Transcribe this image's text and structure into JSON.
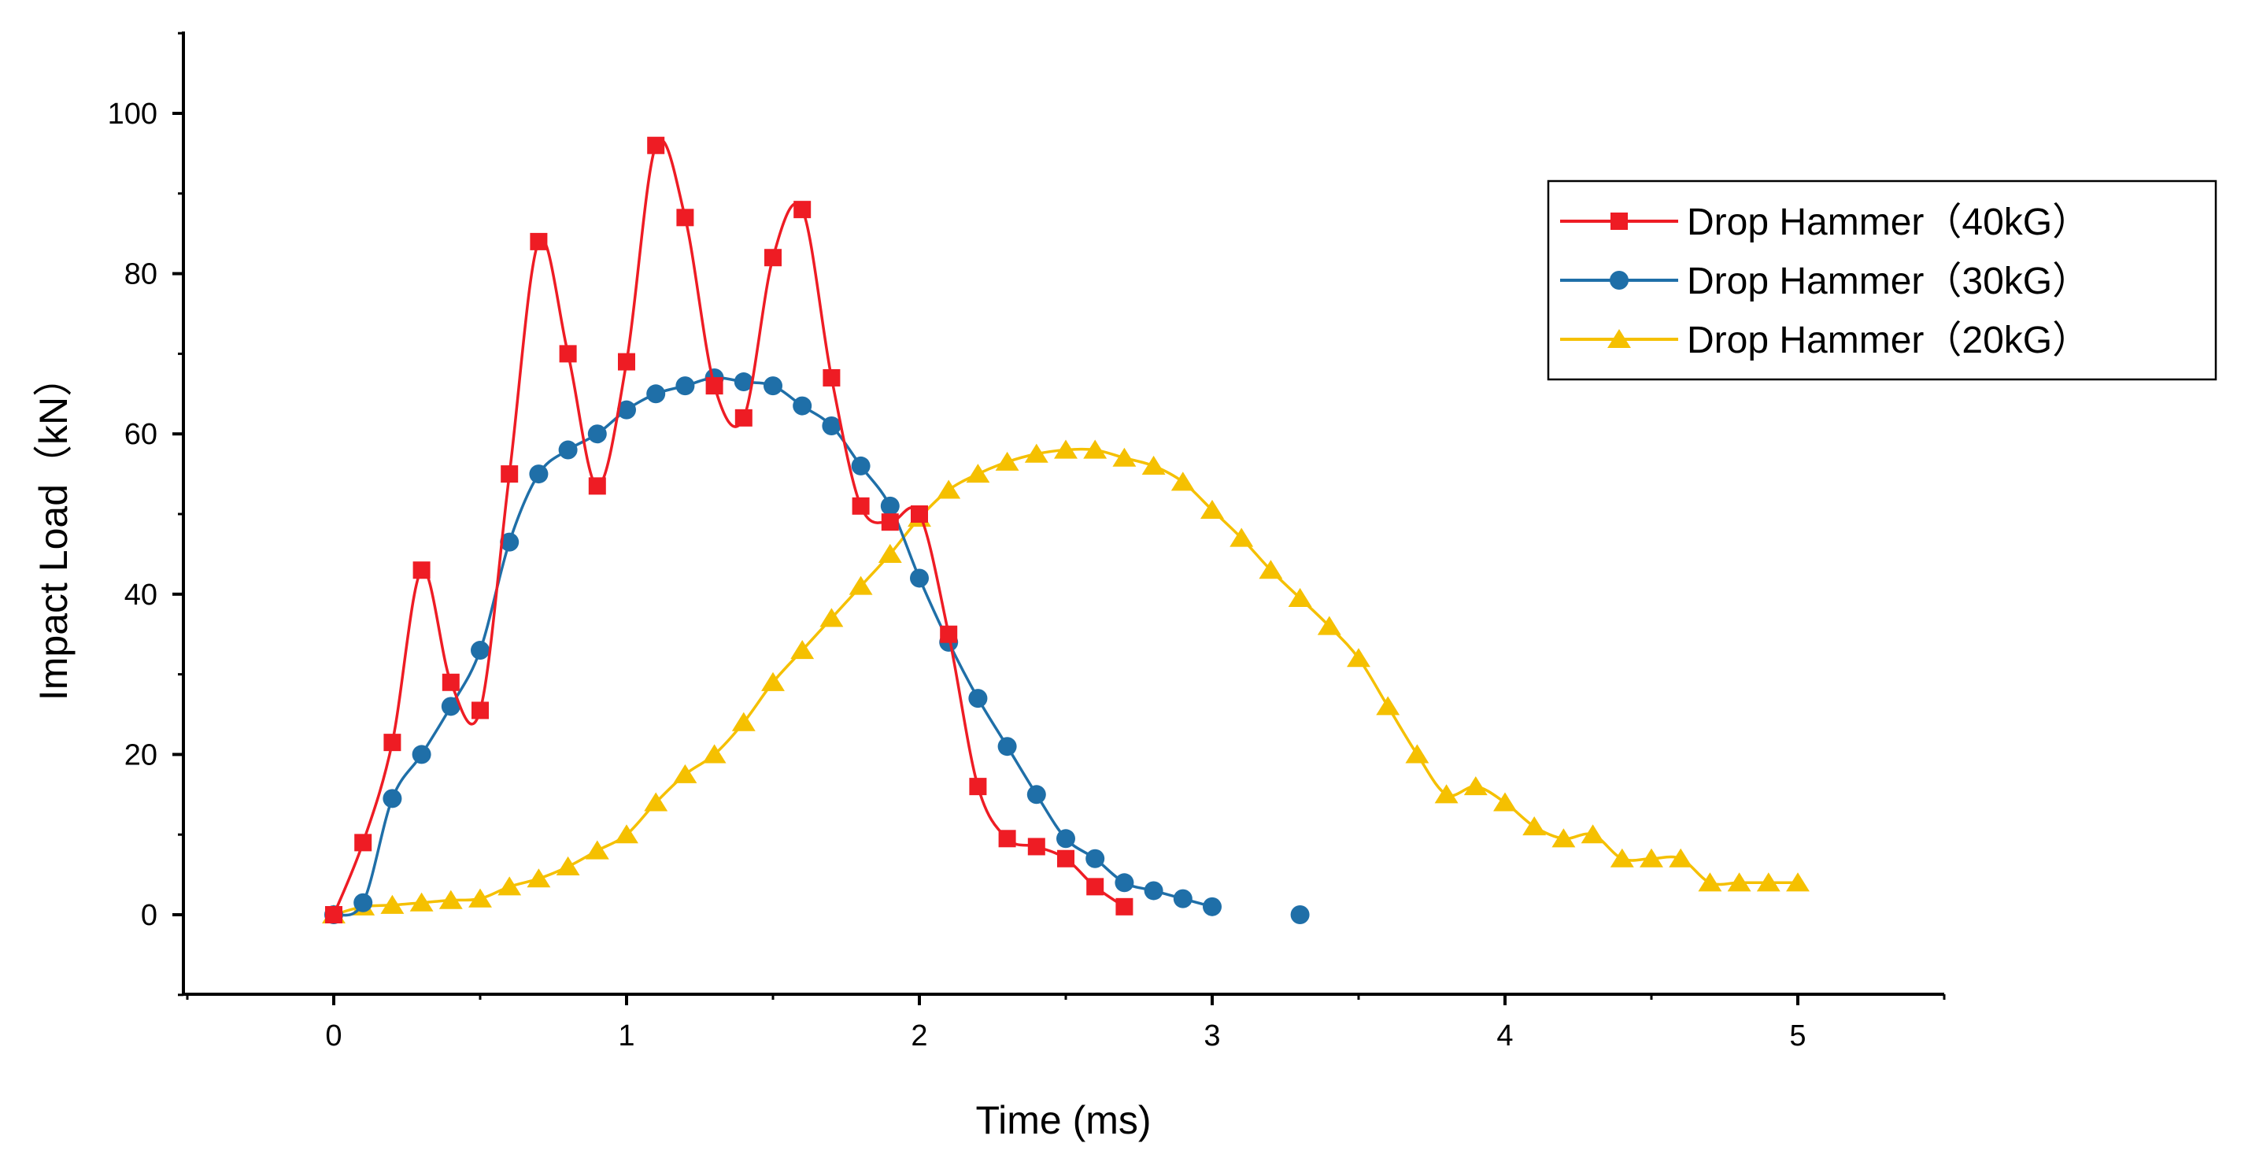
{
  "chart_data": {
    "type": "line",
    "title": "",
    "xlabel": "Time (ms)",
    "ylabel": "Impact Load（kN）",
    "xlim": [
      -0.5,
      5.5
    ],
    "ylim": [
      -10,
      110
    ],
    "x_ticks": [
      0,
      1,
      2,
      3,
      4,
      5
    ],
    "y_ticks": [
      0,
      20,
      40,
      60,
      80,
      100
    ],
    "grid": false,
    "legend_position": "top-right",
    "series": [
      {
        "name": "Drop Hammer（40kG）",
        "color": "#ee1c24",
        "marker": "square",
        "x": [
          0,
          0.1,
          0.2,
          0.3,
          0.4,
          0.5,
          0.6,
          0.7,
          0.8,
          0.9,
          1.0,
          1.1,
          1.2,
          1.3,
          1.4,
          1.5,
          1.6,
          1.7,
          1.8,
          1.9,
          2.0,
          2.1,
          2.2,
          2.3,
          2.4,
          2.5,
          2.6,
          2.7
        ],
        "y": [
          0,
          9,
          21.5,
          43,
          29,
          25.5,
          55,
          84,
          70,
          53.5,
          69,
          96,
          87,
          66,
          62,
          82,
          88,
          67,
          51,
          49,
          50,
          35,
          16,
          9.5,
          8.5,
          7,
          3.5,
          1
        ]
      },
      {
        "name": "Drop Hammer（30kG）",
        "color": "#1f6fa8",
        "marker": "circle",
        "x": [
          0,
          0.1,
          0.2,
          0.3,
          0.4,
          0.5,
          0.6,
          0.7,
          0.8,
          0.9,
          1.0,
          1.1,
          1.2,
          1.3,
          1.4,
          1.5,
          1.6,
          1.7,
          1.8,
          1.9,
          2.0,
          2.1,
          2.2,
          2.3,
          2.4,
          2.5,
          2.6,
          2.7,
          2.8,
          2.9,
          3.0,
          3.3
        ],
        "y": [
          0,
          1.5,
          14.5,
          20,
          26,
          33,
          46.5,
          55,
          58,
          60,
          63,
          65,
          66,
          67,
          66.5,
          66,
          63.5,
          61,
          56,
          51,
          42,
          34,
          27,
          21,
          15,
          9.5,
          7,
          4,
          3,
          2,
          1,
          0
        ]
      },
      {
        "name": "Drop Hammer（20kG）",
        "color": "#f5c000",
        "marker": "triangle",
        "x": [
          0,
          0.1,
          0.2,
          0.3,
          0.4,
          0.5,
          0.6,
          0.7,
          0.8,
          0.9,
          1.0,
          1.1,
          1.2,
          1.3,
          1.4,
          1.5,
          1.6,
          1.7,
          1.8,
          1.9,
          2.0,
          2.1,
          2.2,
          2.3,
          2.4,
          2.5,
          2.6,
          2.7,
          2.8,
          2.9,
          3.0,
          3.1,
          3.2,
          3.3,
          3.4,
          3.5,
          3.6,
          3.7,
          3.8,
          3.9,
          4.0,
          4.1,
          4.2,
          4.3,
          4.4,
          4.5,
          4.6,
          4.7,
          4.8,
          4.9,
          5.0
        ],
        "y": [
          0,
          1,
          1.2,
          1.5,
          1.8,
          2,
          3.5,
          4.5,
          6,
          8,
          10,
          14,
          17.5,
          20,
          24,
          29,
          33,
          37,
          41,
          45,
          49.5,
          53,
          55,
          56.5,
          57.5,
          58,
          58,
          57,
          56,
          54,
          50.5,
          47,
          43,
          39.5,
          36,
          32,
          26,
          20,
          15,
          16,
          14,
          11,
          9.5,
          10,
          7,
          7,
          7,
          4,
          4,
          4,
          4
        ]
      }
    ]
  }
}
